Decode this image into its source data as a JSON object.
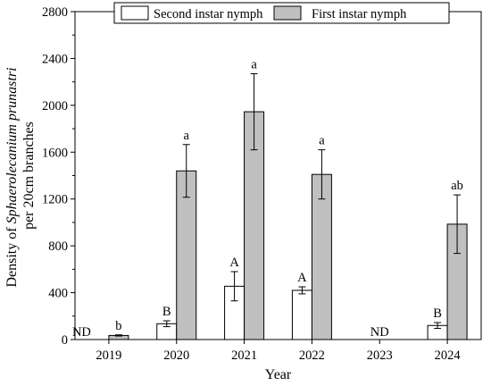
{
  "chart_data": {
    "type": "bar",
    "title": "",
    "xlabel": "Year",
    "ylabel": {
      "prefix": "Density of ",
      "species": "Sphaerolecanium prunastri",
      "line2": "per 20cm branches"
    },
    "categories": [
      "2019",
      "2020",
      "2021",
      "2022",
      "2023",
      "2024"
    ],
    "ylim": [
      0,
      2800
    ],
    "yticks": [
      "0",
      "400",
      "800",
      "1200",
      "1600",
      "2000",
      "2400",
      "2800"
    ],
    "legend_position": "top",
    "grid": false,
    "series": [
      {
        "name": "Second instar nymph",
        "color": "#ffffff",
        "values": [
          null,
          135,
          455,
          420,
          null,
          120
        ],
        "errors": [
          null,
          25,
          125,
          30,
          null,
          25
        ],
        "letters": [
          "ND",
          "B",
          "A",
          "A",
          "ND",
          "B"
        ]
      },
      {
        "name": "First instar nymph",
        "color": "#c0c0c0",
        "values": [
          35,
          1440,
          1945,
          1410,
          null,
          985
        ],
        "errors": [
          5,
          225,
          325,
          210,
          null,
          250
        ],
        "letters": [
          "b",
          "a",
          "a",
          "a",
          "",
          "ab"
        ]
      }
    ]
  }
}
